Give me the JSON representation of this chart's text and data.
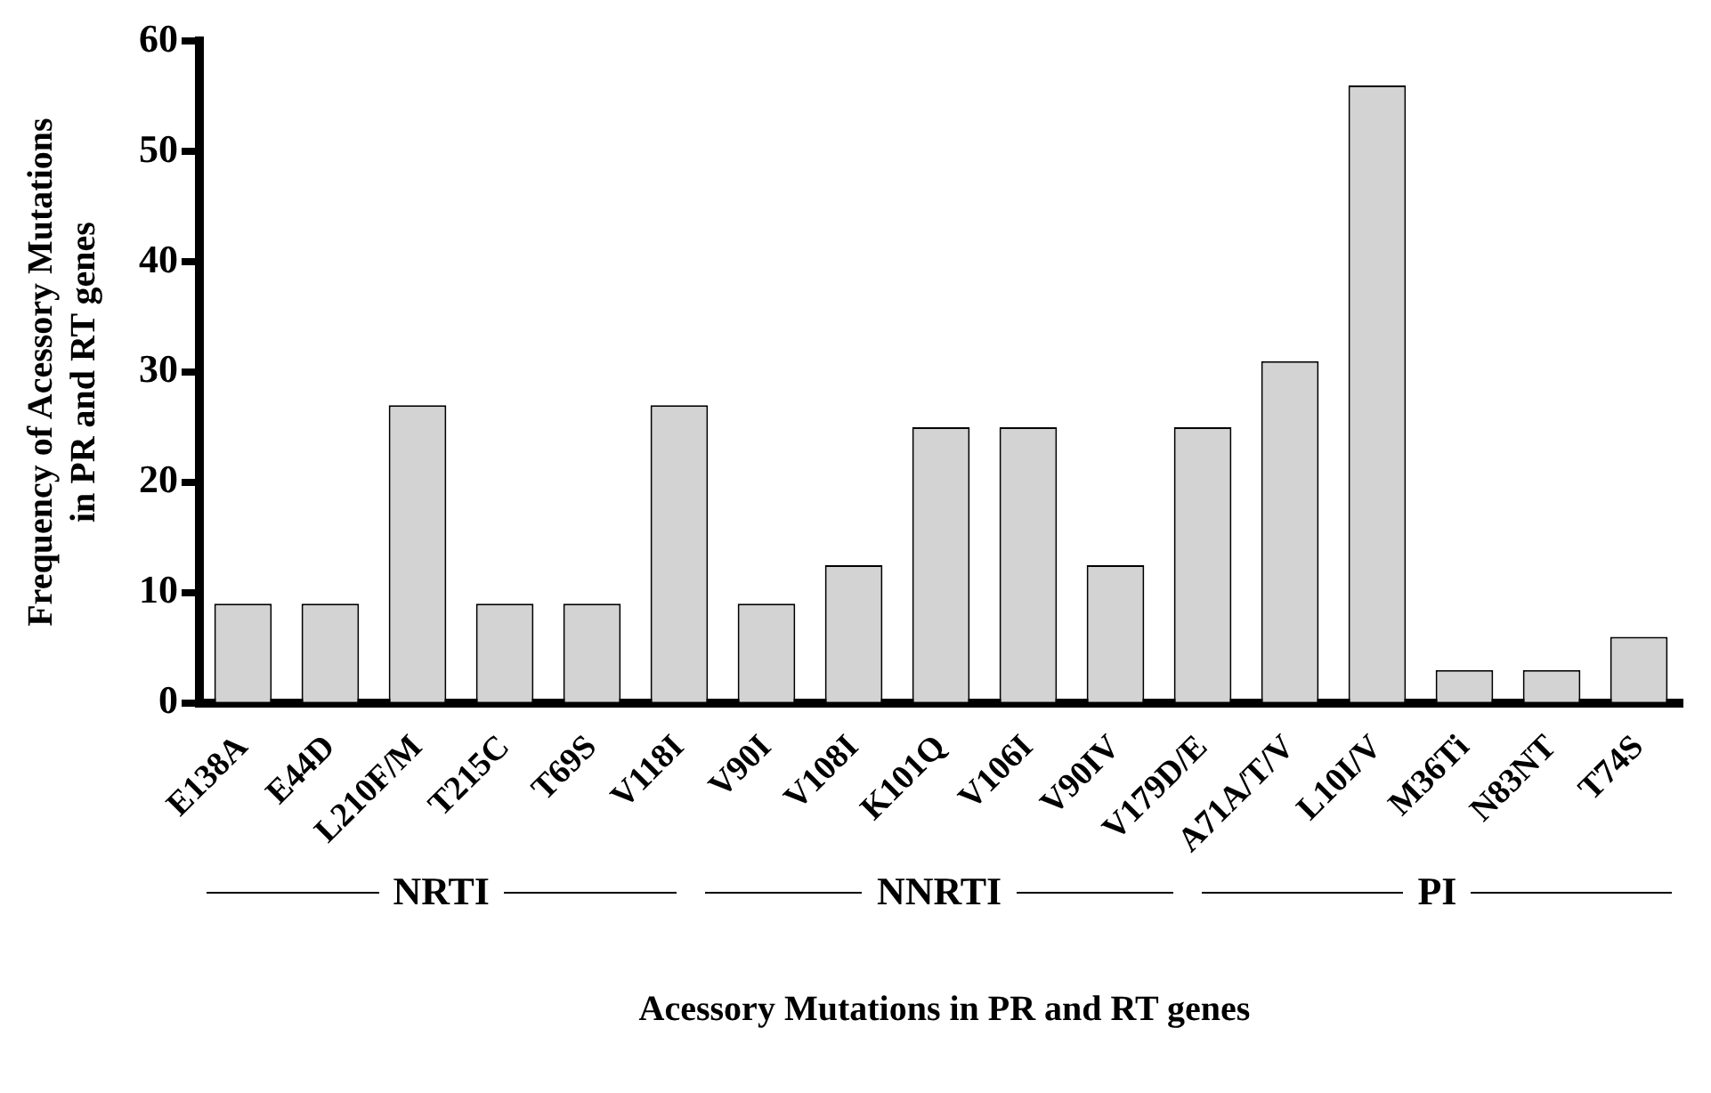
{
  "chart_data": {
    "type": "bar",
    "xlabel": "Acessory Mutations in PR and RT genes",
    "ylabel": "Frequency of Acessory Mutations\nin PR and RT genes",
    "categories": [
      "E138A",
      "E44D",
      "L210F/M",
      "T215C",
      "T69S",
      "V118I",
      "V90I",
      "V108I",
      "K101Q",
      "V106I",
      "V90IV",
      "V179D/E",
      "A71A/T/V",
      "L10I/V",
      "M36Ti",
      "N83NT",
      "T74S"
    ],
    "values": [
      9,
      9,
      27,
      9,
      9,
      27,
      9,
      12.5,
      25,
      25,
      12.5,
      25,
      31,
      56,
      3,
      3,
      6
    ],
    "color": "#d3d3d3",
    "ylim": [
      0,
      60
    ],
    "yticks": [
      0,
      10,
      20,
      30,
      40,
      50,
      60
    ],
    "grid": false,
    "legend": false,
    "annotations": [
      "NRTI",
      "NNRTI",
      "PI"
    ]
  }
}
